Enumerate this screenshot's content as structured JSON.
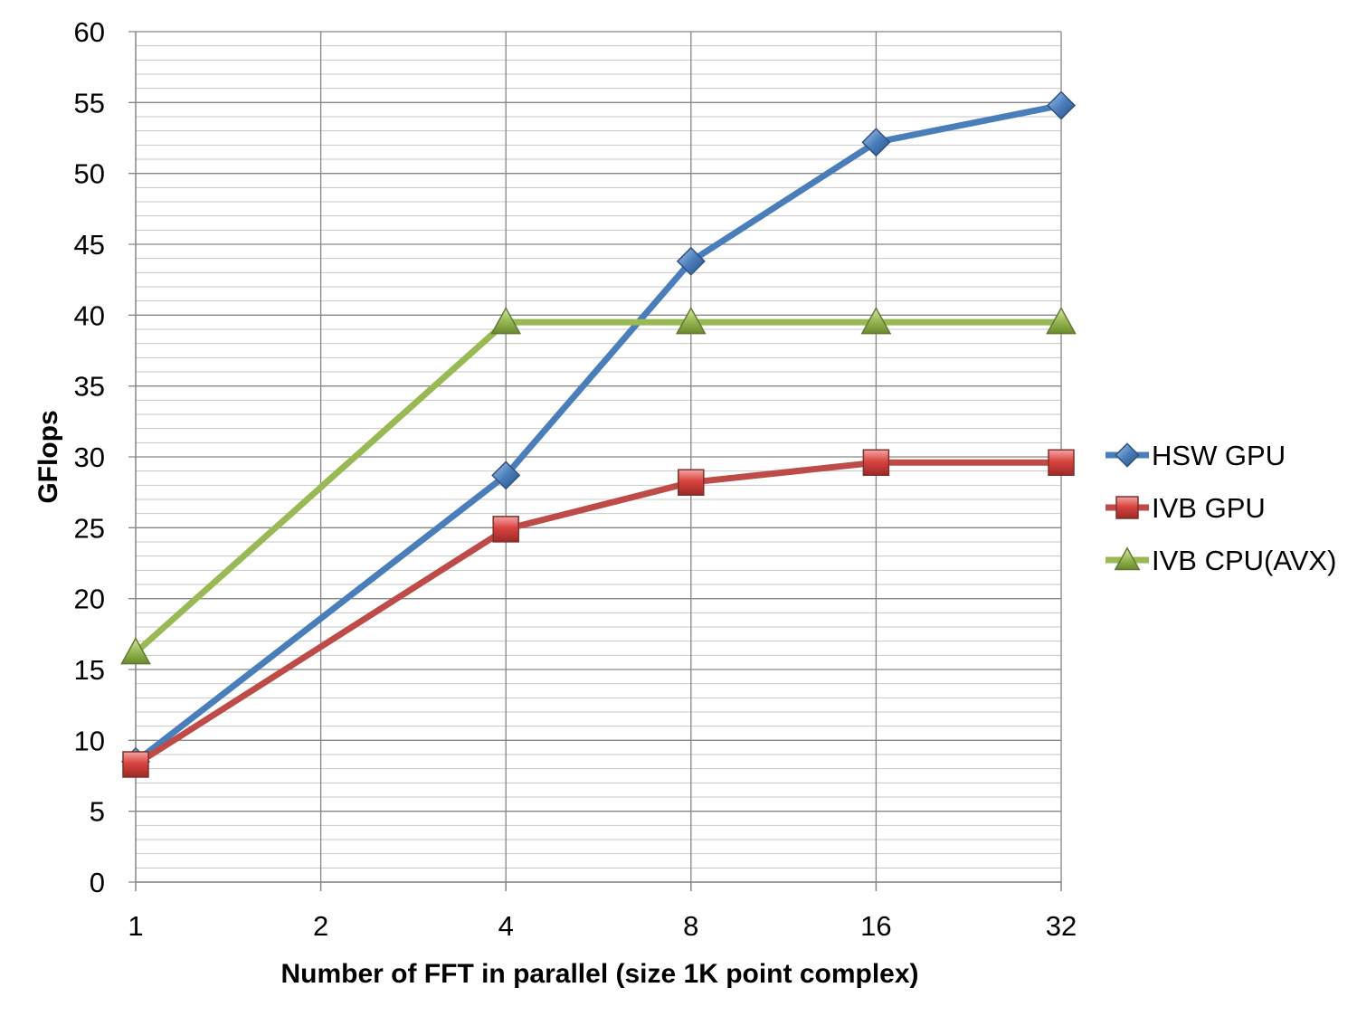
{
  "chart_data": {
    "type": "line",
    "x": [
      "1",
      "2",
      "4",
      "8",
      "16",
      "32"
    ],
    "xlabel": "Number of FFT in parallel (size 1K point complex)",
    "ylabel": "GFlops",
    "ylim": [
      0,
      60
    ],
    "ytick_step": 5,
    "yticks": [
      "0",
      "5",
      "10",
      "15",
      "20",
      "25",
      "30",
      "35",
      "40",
      "45",
      "50",
      "55",
      "60"
    ],
    "grid": true,
    "legend_position": "right",
    "series": [
      {
        "name": "HSW GPU",
        "values": [
          8.5,
          null,
          28.7,
          43.8,
          52.2,
          54.8
        ],
        "color": "#4a7ebb",
        "marker": "diamond"
      },
      {
        "name": "IVB GPU",
        "values": [
          8.3,
          null,
          24.9,
          28.2,
          29.6,
          29.6
        ],
        "color": "#be4b48",
        "marker": "square"
      },
      {
        "name": "IVB CPU(AVX)",
        "values": [
          16.2,
          null,
          39.5,
          39.5,
          39.5,
          39.5
        ],
        "color": "#98b954",
        "marker": "triangle"
      }
    ]
  }
}
